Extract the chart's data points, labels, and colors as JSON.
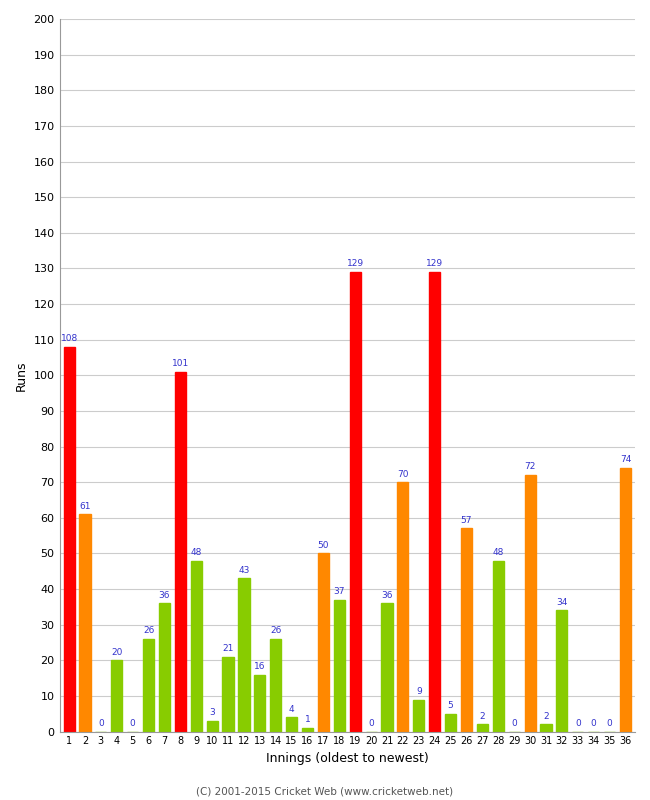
{
  "xlabel": "Innings (oldest to newest)",
  "ylabel": "Runs",
  "ylim": [
    0,
    200
  ],
  "yticks": [
    0,
    10,
    20,
    30,
    40,
    50,
    60,
    70,
    80,
    90,
    100,
    110,
    120,
    130,
    140,
    150,
    160,
    170,
    180,
    190,
    200
  ],
  "background_color": "#ffffff",
  "innings": [
    1,
    2,
    3,
    4,
    5,
    6,
    7,
    8,
    9,
    10,
    11,
    12,
    13,
    14,
    15,
    16,
    17,
    18,
    19,
    20,
    21,
    22,
    23,
    24,
    25,
    26,
    27,
    28,
    29,
    30,
    31,
    32,
    33,
    34,
    35,
    36
  ],
  "values": [
    108,
    61,
    0,
    20,
    0,
    26,
    36,
    101,
    48,
    3,
    21,
    43,
    16,
    26,
    4,
    1,
    50,
    37,
    129,
    0,
    36,
    70,
    9,
    129,
    5,
    57,
    2,
    48,
    0,
    72,
    2,
    34,
    0,
    0,
    0,
    74
  ],
  "colors": [
    "red",
    "orange",
    "limegreen",
    "limegreen",
    "limegreen",
    "limegreen",
    "limegreen",
    "red",
    "limegreen",
    "limegreen",
    "limegreen",
    "limegreen",
    "limegreen",
    "limegreen",
    "limegreen",
    "limegreen",
    "orange",
    "limegreen",
    "red",
    "limegreen",
    "limegreen",
    "orange",
    "limegreen",
    "red",
    "limegreen",
    "orange",
    "limegreen",
    "limegreen",
    "limegreen",
    "orange",
    "limegreen",
    "limegreen",
    "limegreen",
    "limegreen",
    "limegreen",
    "orange"
  ],
  "footer": "(C) 2001-2015 Cricket Web (www.cricketweb.net)",
  "label_color": "#3333cc",
  "label_fontsize": 6.5,
  "bar_width": 0.7
}
